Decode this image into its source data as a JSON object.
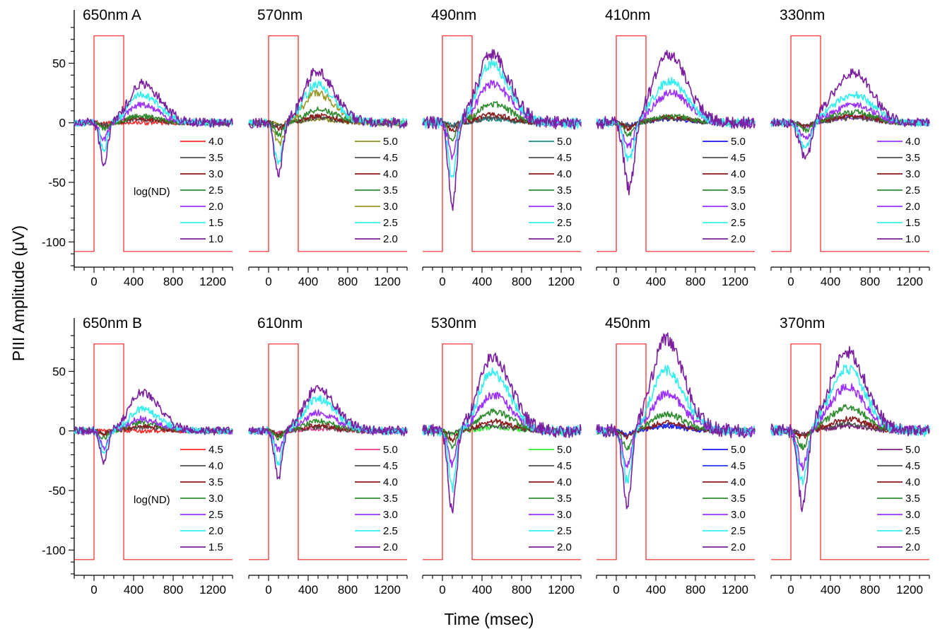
{
  "figure": {
    "y_axis_title": "PIII Amplitude (μV)",
    "x_axis_title": "Time (msec)",
    "nd_label": "log(ND)",
    "stimulus_color": "#ff2020"
  },
  "chart_data": [
    {
      "type": "line",
      "title": "650nm A",
      "xlim": [
        -200,
        1400
      ],
      "ylim": [
        -120,
        90
      ],
      "x_ticks": [
        0,
        400,
        800,
        1200
      ],
      "y_ticks": [
        50,
        0,
        -50,
        -100
      ],
      "show_nd_label": true,
      "stimulus": {
        "on": 0,
        "off": 300,
        "low": -108,
        "high": 73
      },
      "series": [
        {
          "name": "4.0",
          "color": "#ff2a2a",
          "trough_t": 0,
          "trough": 0,
          "peak_t": 0,
          "peak": 0
        },
        {
          "name": "3.5",
          "color": "#505050",
          "trough_t": 100,
          "trough": -2,
          "peak_t": 450,
          "peak": 3
        },
        {
          "name": "3.0",
          "color": "#8b1a1a",
          "trough_t": 100,
          "trough": -3,
          "peak_t": 450,
          "peak": 4
        },
        {
          "name": "2.5",
          "color": "#2e8b2e",
          "trough_t": 100,
          "trough": -5,
          "peak_t": 450,
          "peak": 6
        },
        {
          "name": "2.0",
          "color": "#9b30ff",
          "trough_t": 100,
          "trough": -14,
          "peak_t": 470,
          "peak": 15
        },
        {
          "name": "1.5",
          "color": "#33eeee",
          "trough_t": 100,
          "trough": -22,
          "peak_t": 470,
          "peak": 24
        },
        {
          "name": "1.0",
          "color": "#7b1f9e",
          "trough_t": 100,
          "trough": -34,
          "peak_t": 480,
          "peak": 33
        }
      ]
    },
    {
      "type": "line",
      "title": "570nm",
      "xlim": [
        -200,
        1400
      ],
      "ylim": [
        -120,
        90
      ],
      "x_ticks": [
        0,
        400,
        800,
        1200
      ],
      "y_ticks": [
        50,
        0,
        -50,
        -100
      ],
      "show_nd_label": false,
      "stimulus": {
        "on": 0,
        "off": 300,
        "low": -108,
        "high": 73
      },
      "series": [
        {
          "name": "5.0",
          "color": "#8b8b1a",
          "trough_t": 110,
          "trough": -2,
          "peak_t": 500,
          "peak": 3
        },
        {
          "name": "4.5",
          "color": "#505050",
          "trough_t": 110,
          "trough": -3,
          "peak_t": 500,
          "peak": 4
        },
        {
          "name": "4.0",
          "color": "#8b1a1a",
          "trough_t": 110,
          "trough": -5,
          "peak_t": 500,
          "peak": 6
        },
        {
          "name": "3.5",
          "color": "#2e8b2e",
          "trough_t": 110,
          "trough": -10,
          "peak_t": 500,
          "peak": 11
        },
        {
          "name": "3.0",
          "color": "#9a9a2a",
          "trough_t": 110,
          "trough": -18,
          "peak_t": 480,
          "peak": 25
        },
        {
          "name": "2.5",
          "color": "#33eeee",
          "trough_t": 100,
          "trough": -36,
          "peak_t": 480,
          "peak": 32
        },
        {
          "name": "2.0",
          "color": "#7b1f9e",
          "trough_t": 100,
          "trough": -44,
          "peak_t": 480,
          "peak": 43
        }
      ]
    },
    {
      "type": "line",
      "title": "490nm",
      "xlim": [
        -200,
        1400
      ],
      "ylim": [
        -120,
        90
      ],
      "x_ticks": [
        0,
        400,
        800,
        1200
      ],
      "y_ticks": [
        50,
        0,
        -50,
        -100
      ],
      "show_nd_label": false,
      "stimulus": {
        "on": 0,
        "off": 300,
        "low": -108,
        "high": 73
      },
      "series": [
        {
          "name": "5.0",
          "color": "#1a8b8b",
          "trough_t": 100,
          "trough": -2,
          "peak_t": 500,
          "peak": 3
        },
        {
          "name": "4.5",
          "color": "#505050",
          "trough_t": 100,
          "trough": -3,
          "peak_t": 500,
          "peak": 4
        },
        {
          "name": "4.0",
          "color": "#8b1a1a",
          "trough_t": 100,
          "trough": -7,
          "peak_t": 500,
          "peak": 7
        },
        {
          "name": "3.5",
          "color": "#2e8b2e",
          "trough_t": 100,
          "trough": -14,
          "peak_t": 500,
          "peak": 16
        },
        {
          "name": "3.0",
          "color": "#9b30ff",
          "trough_t": 100,
          "trough": -28,
          "peak_t": 500,
          "peak": 33
        },
        {
          "name": "2.5",
          "color": "#33eeee",
          "trough_t": 100,
          "trough": -48,
          "peak_t": 490,
          "peak": 49
        },
        {
          "name": "2.0",
          "color": "#7b1f9e",
          "trough_t": 100,
          "trough": -70,
          "peak_t": 490,
          "peak": 58
        }
      ]
    },
    {
      "type": "line",
      "title": "410nm",
      "xlim": [
        -200,
        1400
      ],
      "ylim": [
        -120,
        90
      ],
      "x_ticks": [
        0,
        400,
        800,
        1200
      ],
      "y_ticks": [
        50,
        0,
        -50,
        -100
      ],
      "show_nd_label": false,
      "stimulus": {
        "on": 0,
        "off": 300,
        "low": -108,
        "high": 73
      },
      "series": [
        {
          "name": "5.0",
          "color": "#1a1aee",
          "trough_t": 130,
          "trough": -2,
          "peak_t": 550,
          "peak": 3
        },
        {
          "name": "4.5",
          "color": "#505050",
          "trough_t": 130,
          "trough": -3,
          "peak_t": 550,
          "peak": 4
        },
        {
          "name": "4.0",
          "color": "#8b1a1a",
          "trough_t": 130,
          "trough": -5,
          "peak_t": 550,
          "peak": 5
        },
        {
          "name": "3.5",
          "color": "#2e8b2e",
          "trough_t": 130,
          "trough": -10,
          "peak_t": 550,
          "peak": 6
        },
        {
          "name": "3.0",
          "color": "#9b30ff",
          "trough_t": 130,
          "trough": -20,
          "peak_t": 550,
          "peak": 25
        },
        {
          "name": "2.5",
          "color": "#33eeee",
          "trough_t": 130,
          "trough": -32,
          "peak_t": 530,
          "peak": 35
        },
        {
          "name": "2.0",
          "color": "#7b1f9e",
          "trough_t": 130,
          "trough": -57,
          "peak_t": 530,
          "peak": 58
        }
      ]
    },
    {
      "type": "line",
      "title": "330nm",
      "xlim": [
        -200,
        1400
      ],
      "ylim": [
        -120,
        90
      ],
      "x_ticks": [
        0,
        400,
        800,
        1200
      ],
      "y_ticks": [
        50,
        0,
        -50,
        -100
      ],
      "show_nd_label": false,
      "stimulus": {
        "on": 0,
        "off": 300,
        "low": -108,
        "high": 73
      },
      "series": [
        {
          "name": "4.0",
          "color": "#9b30ff",
          "trough_t": 150,
          "trough": -3,
          "peak_t": 650,
          "peak": 5
        },
        {
          "name": "3.5",
          "color": "#505050",
          "trough_t": 150,
          "trough": -3,
          "peak_t": 650,
          "peak": 4
        },
        {
          "name": "3.0",
          "color": "#8b1a1a",
          "trough_t": 150,
          "trough": -4,
          "peak_t": 650,
          "peak": 6
        },
        {
          "name": "2.5",
          "color": "#2e8b2e",
          "trough_t": 150,
          "trough": -7,
          "peak_t": 650,
          "peak": 9
        },
        {
          "name": "2.0",
          "color": "#9b30ff",
          "trough_t": 150,
          "trough": -14,
          "peak_t": 650,
          "peak": 15
        },
        {
          "name": "1.5",
          "color": "#33eeee",
          "trough_t": 150,
          "trough": -23,
          "peak_t": 640,
          "peak": 24
        },
        {
          "name": "1.0",
          "color": "#7b1f9e",
          "trough_t": 150,
          "trough": -33,
          "peak_t": 640,
          "peak": 42
        }
      ]
    },
    {
      "type": "line",
      "title": "650nm B",
      "xlim": [
        -200,
        1400
      ],
      "ylim": [
        -120,
        90
      ],
      "x_ticks": [
        0,
        400,
        800,
        1200
      ],
      "y_ticks": [
        50,
        0,
        -50,
        -100
      ],
      "show_nd_label": true,
      "stimulus": {
        "on": 0,
        "off": 300,
        "low": -108,
        "high": 73
      },
      "series": [
        {
          "name": "4.5",
          "color": "#ff2a2a",
          "trough_t": 0,
          "trough": 0,
          "peak_t": 0,
          "peak": 0
        },
        {
          "name": "4.0",
          "color": "#505050",
          "trough_t": 100,
          "trough": -2,
          "peak_t": 480,
          "peak": 3
        },
        {
          "name": "3.5",
          "color": "#8b1a1a",
          "trough_t": 100,
          "trough": -3,
          "peak_t": 480,
          "peak": 4
        },
        {
          "name": "3.0",
          "color": "#2e8b2e",
          "trough_t": 100,
          "trough": -6,
          "peak_t": 480,
          "peak": 7
        },
        {
          "name": "2.5",
          "color": "#9b30ff",
          "trough_t": 100,
          "trough": -14,
          "peak_t": 480,
          "peak": 10
        },
        {
          "name": "2.0",
          "color": "#33eeee",
          "trough_t": 100,
          "trough": -18,
          "peak_t": 480,
          "peak": 18
        },
        {
          "name": "1.5",
          "color": "#7b1f9e",
          "trough_t": 100,
          "trough": -26,
          "peak_t": 480,
          "peak": 32
        }
      ]
    },
    {
      "type": "line",
      "title": "610nm",
      "xlim": [
        -200,
        1400
      ],
      "ylim": [
        -120,
        90
      ],
      "x_ticks": [
        0,
        400,
        800,
        1200
      ],
      "y_ticks": [
        50,
        0,
        -50,
        -100
      ],
      "show_nd_label": false,
      "stimulus": {
        "on": 0,
        "off": 300,
        "low": -108,
        "high": 73
      },
      "series": [
        {
          "name": "5.0",
          "color": "#ee3a8c",
          "trough_t": 100,
          "trough": -2,
          "peak_t": 500,
          "peak": 2
        },
        {
          "name": "4.5",
          "color": "#505050",
          "trough_t": 100,
          "trough": -3,
          "peak_t": 500,
          "peak": 3
        },
        {
          "name": "4.0",
          "color": "#8b1a1a",
          "trough_t": 100,
          "trough": -4,
          "peak_t": 500,
          "peak": 5
        },
        {
          "name": "3.5",
          "color": "#2e8b2e",
          "trough_t": 100,
          "trough": -6,
          "peak_t": 500,
          "peak": 8
        },
        {
          "name": "3.0",
          "color": "#9b30ff",
          "trough_t": 100,
          "trough": -16,
          "peak_t": 500,
          "peak": 15
        },
        {
          "name": "2.5",
          "color": "#33eeee",
          "trough_t": 100,
          "trough": -27,
          "peak_t": 490,
          "peak": 27
        },
        {
          "name": "2.0",
          "color": "#7b1f9e",
          "trough_t": 100,
          "trough": -39,
          "peak_t": 490,
          "peak": 36
        }
      ]
    },
    {
      "type": "line",
      "title": "530nm",
      "xlim": [
        -200,
        1400
      ],
      "ylim": [
        -120,
        90
      ],
      "x_ticks": [
        0,
        400,
        800,
        1200
      ],
      "y_ticks": [
        50,
        0,
        -50,
        -100
      ],
      "show_nd_label": false,
      "stimulus": {
        "on": 0,
        "off": 300,
        "low": -108,
        "high": 73
      },
      "series": [
        {
          "name": "5.0",
          "color": "#33ee33",
          "trough_t": 100,
          "trough": -2,
          "peak_t": 520,
          "peak": 3
        },
        {
          "name": "4.5",
          "color": "#505050",
          "trough_t": 100,
          "trough": -3,
          "peak_t": 520,
          "peak": 4
        },
        {
          "name": "4.0",
          "color": "#8b1a1a",
          "trough_t": 100,
          "trough": -8,
          "peak_t": 520,
          "peak": 8
        },
        {
          "name": "3.5",
          "color": "#2e8b2e",
          "trough_t": 100,
          "trough": -14,
          "peak_t": 520,
          "peak": 16
        },
        {
          "name": "3.0",
          "color": "#9b30ff",
          "trough_t": 100,
          "trough": -28,
          "peak_t": 510,
          "peak": 30
        },
        {
          "name": "2.5",
          "color": "#33eeee",
          "trough_t": 100,
          "trough": -48,
          "peak_t": 500,
          "peak": 49
        },
        {
          "name": "2.0",
          "color": "#7b1f9e",
          "trough_t": 100,
          "trough": -68,
          "peak_t": 510,
          "peak": 62
        }
      ]
    },
    {
      "type": "line",
      "title": "450nm",
      "xlim": [
        -200,
        1400
      ],
      "ylim": [
        -120,
        90
      ],
      "x_ticks": [
        0,
        400,
        800,
        1200
      ],
      "y_ticks": [
        50,
        0,
        -50,
        -100
      ],
      "show_nd_label": false,
      "stimulus": {
        "on": 0,
        "off": 300,
        "low": -108,
        "high": 73
      },
      "series": [
        {
          "name": "5.0",
          "color": "#1a1aee",
          "trough_t": 110,
          "trough": -3,
          "peak_t": 500,
          "peak": 4
        },
        {
          "name": "4.5",
          "color": "#2a3aee",
          "trough_t": 110,
          "trough": -4,
          "peak_t": 500,
          "peak": 5
        },
        {
          "name": "4.0",
          "color": "#8b1a1a",
          "trough_t": 110,
          "trough": -5,
          "peak_t": 500,
          "peak": 7
        },
        {
          "name": "3.5",
          "color": "#2e8b2e",
          "trough_t": 110,
          "trough": -15,
          "peak_t": 500,
          "peak": 14
        },
        {
          "name": "3.0",
          "color": "#9b30ff",
          "trough_t": 110,
          "trough": -30,
          "peak_t": 500,
          "peak": 31
        },
        {
          "name": "2.5",
          "color": "#33eeee",
          "trough_t": 110,
          "trough": -42,
          "peak_t": 500,
          "peak": 51
        },
        {
          "name": "2.0",
          "color": "#7b1f9e",
          "trough_t": 110,
          "trough": -63,
          "peak_t": 500,
          "peak": 77
        }
      ]
    },
    {
      "type": "line",
      "title": "370nm",
      "xlim": [
        -200,
        1400
      ],
      "ylim": [
        -120,
        90
      ],
      "x_ticks": [
        0,
        400,
        800,
        1200
      ],
      "y_ticks": [
        50,
        0,
        -50,
        -100
      ],
      "show_nd_label": false,
      "stimulus": {
        "on": 0,
        "off": 300,
        "low": -108,
        "high": 73
      },
      "series": [
        {
          "name": "5.0",
          "color": "#7b1f7b",
          "trough_t": 120,
          "trough": -3,
          "peak_t": 580,
          "peak": 4
        },
        {
          "name": "4.5",
          "color": "#505050",
          "trough_t": 120,
          "trough": -4,
          "peak_t": 580,
          "peak": 6
        },
        {
          "name": "4.0",
          "color": "#8b1a1a",
          "trough_t": 120,
          "trough": -6,
          "peak_t": 580,
          "peak": 10
        },
        {
          "name": "3.5",
          "color": "#2e8b2e",
          "trough_t": 120,
          "trough": -14,
          "peak_t": 580,
          "peak": 20
        },
        {
          "name": "3.0",
          "color": "#9b30ff",
          "trough_t": 120,
          "trough": -32,
          "peak_t": 570,
          "peak": 37
        },
        {
          "name": "2.5",
          "color": "#33eeee",
          "trough_t": 120,
          "trough": -45,
          "peak_t": 570,
          "peak": 52
        },
        {
          "name": "2.0",
          "color": "#7b1f9e",
          "trough_t": 120,
          "trough": -65,
          "peak_t": 570,
          "peak": 67
        }
      ]
    }
  ]
}
